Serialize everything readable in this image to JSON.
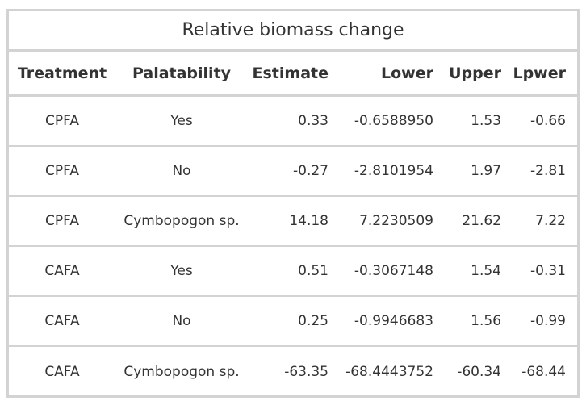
{
  "title": "Relative biomass change",
  "columns": [
    "Treatment",
    "Palatability",
    "Estimate",
    "Lower",
    "Upper",
    "Lpwer"
  ],
  "rows": [
    [
      "CPFA",
      "Yes",
      "0.33",
      "-0.6588950",
      "1.53",
      "-0.66"
    ],
    [
      "CPFA",
      "No",
      "-0.27",
      "-2.8101954",
      "1.97",
      "-2.81"
    ],
    [
      "CPFA",
      "Cymbopogon sp.",
      "14.18",
      "7.2230509",
      "21.62",
      "7.22"
    ],
    [
      "CAFA",
      "Yes",
      "0.51",
      "-0.3067148",
      "1.54",
      "-0.31"
    ],
    [
      "CAFA",
      "No",
      "0.25",
      "-0.9946683",
      "1.56",
      "-0.99"
    ],
    [
      "CAFA",
      "Cymbopogon sp.",
      "-63.35",
      "-68.4443752",
      "-60.34",
      "-68.44"
    ]
  ]
}
